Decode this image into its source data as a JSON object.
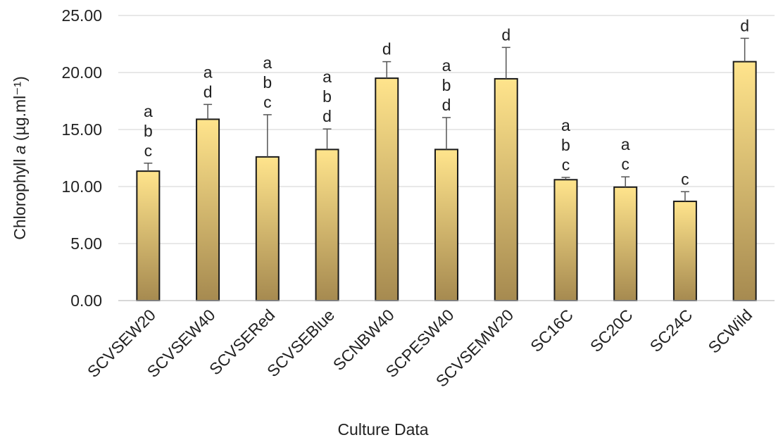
{
  "chart_data": {
    "type": "bar",
    "categories": [
      "SCVSEW20",
      "SCVSEW40",
      "SCVSERed",
      "SCVSEBlue",
      "SCNBW40",
      "SCPESW40",
      "SCVSEMW20",
      "SC16C",
      "SC20C",
      "SC24C",
      "SCWild"
    ],
    "values": [
      11.35,
      15.9,
      12.6,
      13.25,
      19.5,
      13.25,
      19.45,
      10.6,
      9.95,
      8.7,
      20.95
    ],
    "errors": [
      0.7,
      1.3,
      3.7,
      1.8,
      1.45,
      2.8,
      2.75,
      0.2,
      0.9,
      0.85,
      2.05
    ],
    "significance": [
      [
        "a",
        "b",
        "c"
      ],
      [
        "a",
        "d"
      ],
      [
        "a",
        "b",
        "c"
      ],
      [
        "a",
        "b",
        "d"
      ],
      [
        "d"
      ],
      [
        "a",
        "b",
        "d"
      ],
      [
        "d"
      ],
      [
        "a",
        "b",
        "c"
      ],
      [
        "a",
        "c"
      ],
      [
        "c"
      ],
      [
        "d"
      ]
    ],
    "xlabel": "Culture Data",
    "ylabel_prefix": "Chlorophyll ",
    "ylabel_italic": "a",
    "ylabel_suffix": " (µg.ml⁻¹)",
    "ylim": [
      0,
      25
    ],
    "yticks": [
      "0.00",
      "5.00",
      "10.00",
      "15.00",
      "20.00",
      "25.00"
    ],
    "ytick_values": [
      0,
      5,
      10,
      15,
      20,
      25
    ],
    "grid": true,
    "bar_gradient_top": "#ffe48c",
    "bar_gradient_bottom": "#a68a50"
  }
}
